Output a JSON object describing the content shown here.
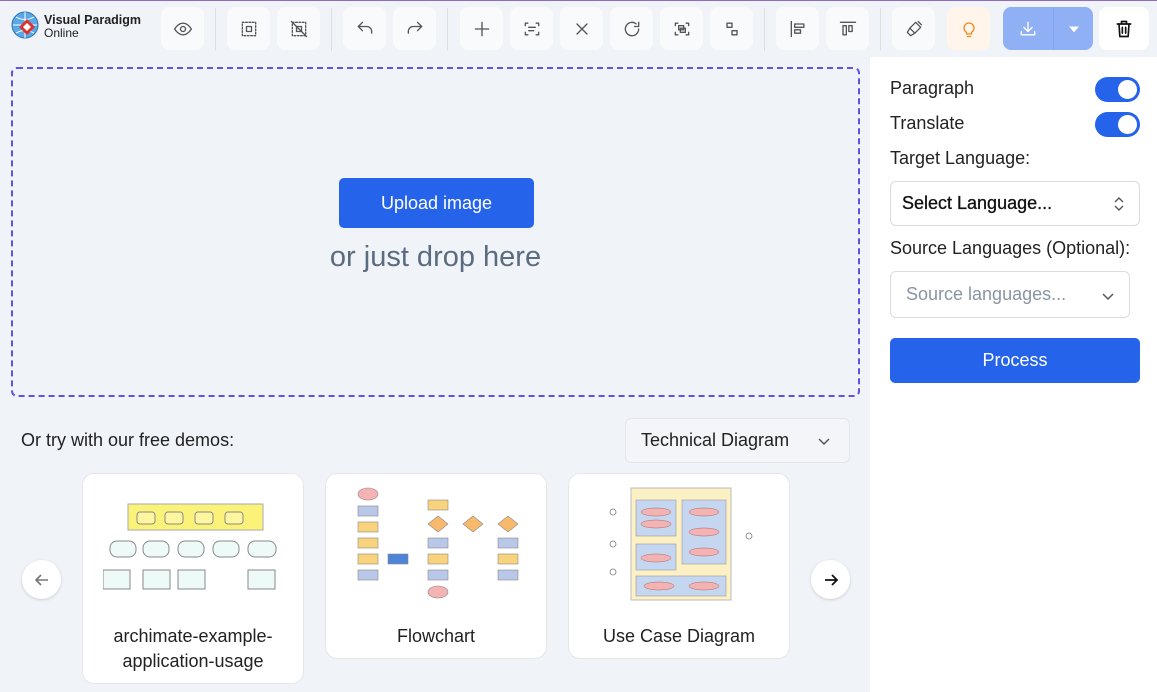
{
  "logo": {
    "line1": "Visual Paradigm",
    "line2": "Online"
  },
  "toolbar": {
    "buttons": [
      "eye-icon",
      "select-all-icon",
      "deselect-icon",
      "undo-icon",
      "redo-icon",
      "plus-icon",
      "scan-text-icon",
      "close-icon",
      "refresh-icon",
      "group-icon",
      "ungroup-icon",
      "align-left-icon",
      "align-top-icon",
      "brush-icon",
      "lightbulb-icon",
      "download-icon",
      "caret-down-icon",
      "trash-icon"
    ]
  },
  "upload": {
    "button": "Upload image",
    "drop_text": "or just drop here"
  },
  "demos": {
    "label": "Or try with our free demos:",
    "category": "Technical Diagram",
    "cards": [
      {
        "title": "archimate-example-application-usage"
      },
      {
        "title": "Flowchart"
      },
      {
        "title": "Use Case Diagram"
      }
    ]
  },
  "panel": {
    "paragraph": "Paragraph",
    "paragraph_on": true,
    "translate": "Translate",
    "translate_on": true,
    "target_label": "Target Language:",
    "target_value": "Select Language...",
    "source_label": "Source Languages (Optional):",
    "source_placeholder": "Source languages...",
    "process": "Process"
  },
  "colors": {
    "accent": "#2563eb",
    "drop_border": "#5b55e0"
  }
}
